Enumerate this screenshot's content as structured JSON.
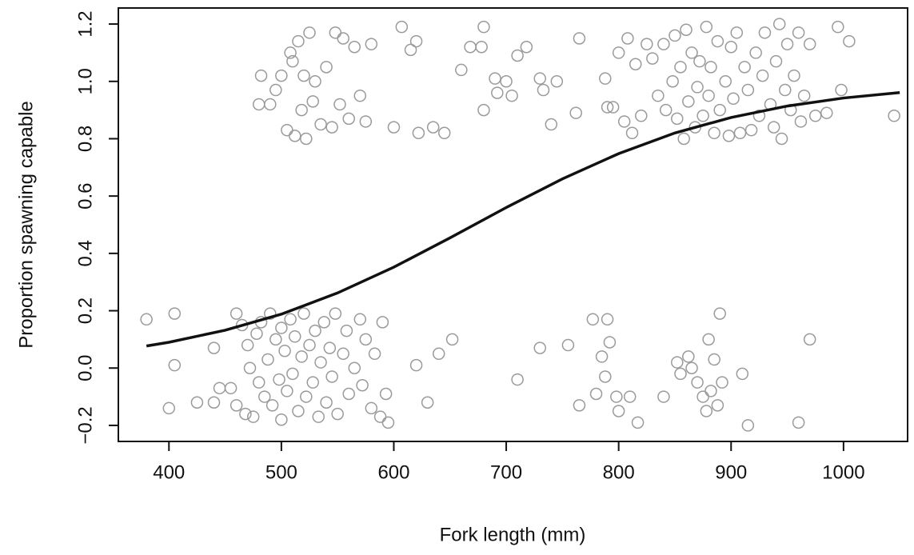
{
  "chart_data": {
    "type": "scatter",
    "xlabel": "Fork length (mm)",
    "ylabel": "Proportion spawning capable",
    "xlim": [
      355,
      1057
    ],
    "ylim": [
      -0.256,
      1.256
    ],
    "xticks": [
      400,
      500,
      600,
      700,
      800,
      900,
      1000
    ],
    "yticks": [
      {
        "value": -0.2,
        "label": "−0.2"
      },
      {
        "value": 0,
        "label": "0.0"
      },
      0.2,
      0.4,
      0.6,
      0.8,
      {
        "value": 1,
        "label": "1.0"
      },
      1.2
    ],
    "color": "#9a9a9a",
    "x": [
      380,
      400,
      405,
      405,
      425,
      440,
      440,
      445,
      455,
      460,
      460,
      465,
      468,
      470,
      472,
      475,
      478,
      480,
      482,
      485,
      488,
      490,
      492,
      495,
      498,
      500,
      500,
      503,
      505,
      508,
      510,
      512,
      515,
      518,
      520,
      522,
      525,
      528,
      530,
      533,
      535,
      538,
      540,
      543,
      545,
      548,
      550,
      555,
      558,
      560,
      565,
      570,
      572,
      575,
      580,
      583,
      588,
      590,
      593,
      595,
      620,
      630,
      640,
      652,
      710,
      730,
      755,
      765,
      777,
      780,
      785,
      788,
      790,
      792,
      798,
      800,
      810,
      817,
      840,
      852,
      855,
      862,
      865,
      870,
      875,
      878,
      880,
      882,
      885,
      888,
      890,
      892,
      910,
      915,
      960,
      970,
      480,
      482,
      490,
      495,
      500,
      505,
      508,
      510,
      512,
      515,
      518,
      520,
      522,
      525,
      528,
      530,
      535,
      540,
      545,
      548,
      552,
      555,
      560,
      565,
      570,
      575,
      580,
      600,
      607,
      615,
      620,
      622,
      635,
      645,
      660,
      668,
      678,
      680,
      680,
      690,
      692,
      700,
      705,
      710,
      718,
      730,
      733,
      740,
      745,
      762,
      765,
      788,
      790,
      795,
      800,
      805,
      808,
      812,
      815,
      820,
      825,
      830,
      835,
      840,
      842,
      848,
      850,
      852,
      855,
      858,
      860,
      862,
      865,
      868,
      870,
      872,
      875,
      878,
      880,
      882,
      885,
      888,
      890,
      895,
      898,
      900,
      902,
      905,
      908,
      912,
      915,
      918,
      922,
      925,
      928,
      930,
      935,
      938,
      940,
      943,
      945,
      948,
      950,
      953,
      956,
      960,
      962,
      965,
      970,
      975,
      985,
      995,
      998,
      1005,
      1045
    ],
    "values": [
      0.17,
      -0.14,
      0.19,
      0.01,
      -0.12,
      0.07,
      -0.12,
      -0.07,
      -0.07,
      0.19,
      -0.13,
      0.15,
      -0.16,
      0.08,
      0.0,
      -0.17,
      0.12,
      -0.05,
      0.16,
      -0.1,
      0.03,
      0.19,
      -0.13,
      0.1,
      -0.04,
      0.14,
      -0.18,
      0.06,
      -0.08,
      0.17,
      -0.02,
      0.11,
      -0.15,
      0.04,
      0.19,
      -0.1,
      0.08,
      -0.05,
      0.13,
      -0.17,
      0.02,
      0.16,
      -0.12,
      0.07,
      -0.03,
      0.19,
      -0.16,
      0.05,
      0.13,
      -0.09,
      0.0,
      0.17,
      -0.06,
      0.1,
      -0.14,
      0.05,
      -0.17,
      0.16,
      -0.09,
      -0.19,
      0.01,
      -0.12,
      0.05,
      0.1,
      -0.04,
      0.07,
      0.08,
      -0.13,
      0.17,
      -0.09,
      0.04,
      -0.03,
      0.17,
      0.09,
      -0.1,
      -0.15,
      -0.1,
      -0.19,
      -0.1,
      0.02,
      -0.02,
      0.04,
      0.0,
      -0.05,
      -0.1,
      -0.15,
      0.1,
      -0.08,
      0.03,
      -0.13,
      0.19,
      -0.05,
      -0.02,
      -0.2,
      -0.19,
      0.1,
      0.92,
      1.02,
      0.92,
      0.97,
      1.02,
      0.83,
      1.1,
      1.07,
      0.81,
      1.14,
      0.9,
      1.02,
      0.8,
      1.17,
      0.93,
      1.0,
      0.85,
      1.05,
      0.84,
      1.17,
      0.92,
      1.15,
      0.87,
      1.12,
      0.95,
      0.86,
      1.13,
      0.84,
      1.19,
      1.11,
      1.14,
      0.82,
      0.84,
      0.82,
      1.04,
      1.12,
      1.12,
      1.19,
      0.9,
      1.01,
      0.96,
      1.0,
      0.95,
      1.09,
      1.12,
      1.01,
      0.97,
      0.85,
      1.0,
      0.89,
      1.15,
      1.01,
      0.91,
      0.91,
      1.1,
      0.86,
      1.15,
      0.82,
      1.06,
      0.88,
      1.13,
      1.08,
      0.95,
      1.13,
      0.9,
      1.0,
      1.16,
      0.87,
      1.05,
      0.8,
      1.18,
      0.93,
      1.1,
      0.84,
      0.98,
      1.07,
      0.88,
      1.19,
      0.95,
      1.05,
      0.82,
      1.14,
      0.9,
      1.0,
      0.81,
      1.12,
      0.94,
      1.17,
      0.82,
      1.05,
      0.97,
      0.83,
      1.1,
      0.88,
      1.02,
      1.17,
      0.92,
      0.84,
      1.07,
      1.2,
      0.8,
      0.97,
      1.13,
      0.9,
      1.02,
      1.17,
      0.86,
      0.95,
      1.13,
      0.88,
      0.89,
      1.19,
      0.97,
      1.14,
      0.88
    ],
    "curve": {
      "type": "line",
      "color": "#111111",
      "x": [
        380,
        400,
        450,
        500,
        550,
        600,
        650,
        700,
        750,
        800,
        850,
        900,
        950,
        1000,
        1050
      ],
      "values": [
        0.077,
        0.09,
        0.132,
        0.188,
        0.262,
        0.352,
        0.454,
        0.56,
        0.66,
        0.748,
        0.82,
        0.874,
        0.914,
        0.942,
        0.961
      ]
    }
  }
}
